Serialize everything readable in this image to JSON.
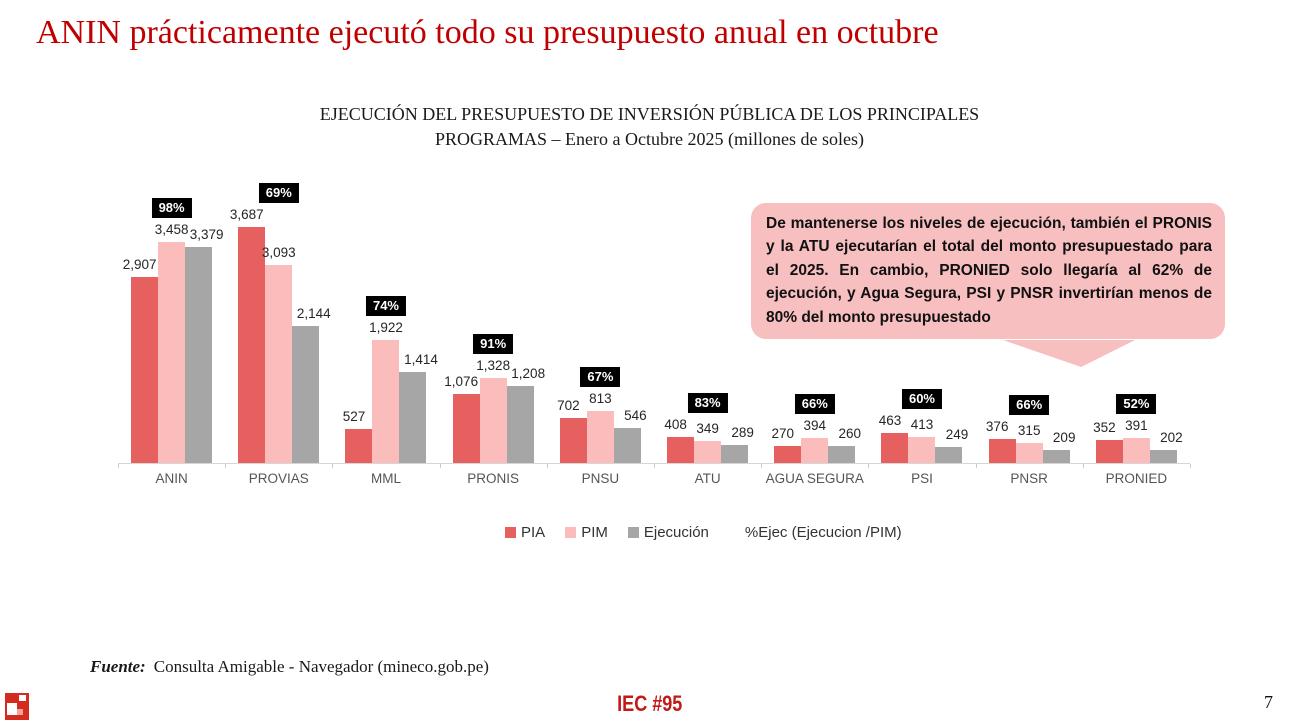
{
  "slide": {
    "title": "ANIN prácticamente ejecutó todo su presupuesto anual en octubre",
    "page_number": "7",
    "footer_brand": "IEC #95",
    "source_label": "Fuente:",
    "source_text": "Consulta Amigable - Navegador (mineco.gob.pe)"
  },
  "callout": {
    "text": "De mantenerse los niveles de ejecución, también el PRONIS y la ATU ejecutarían el total del monto presupuestado para el 2025. En cambio, PRONIED solo llegaría al 62% de ejecución, y Agua Segura, PSI y PNSR invertirían menos de 80% del monto presupuestado",
    "background_color": "#f8bfc0"
  },
  "chart_data": {
    "type": "bar",
    "title_line1": "EJECUCIÓN DEL PRESUPUESTO DE INVERSIÓN PÚBLICA DE LOS PRINCIPALES",
    "title_line2": "PROGRAMAS – Enero a Octubre 2025 (millones de soles)",
    "categories": [
      "ANIN",
      "PROVIAS",
      "MML",
      "PRONIS",
      "PNSU",
      "ATU",
      "AGUA SEGURA",
      "PSI",
      "PNSR",
      "PRONIED"
    ],
    "series": [
      {
        "name": "PIA",
        "color": "#e5605e",
        "values": [
          2907,
          3687,
          527,
          1076,
          702,
          408,
          270,
          463,
          376,
          352
        ]
      },
      {
        "name": "PIM",
        "color": "#fbbcbc",
        "values": [
          3458,
          3093,
          1922,
          1328,
          813,
          349,
          394,
          413,
          315,
          391
        ]
      },
      {
        "name": "Ejecución",
        "color": "#a6a6a6",
        "values": [
          3379,
          2144,
          1414,
          1208,
          546,
          289,
          260,
          249,
          209,
          202
        ]
      }
    ],
    "pct_ejec": [
      "98%",
      "69%",
      "74%",
      "91%",
      "67%",
      "83%",
      "66%",
      "60%",
      "66%",
      "52%"
    ],
    "pct_label_style": {
      "background": "#000000",
      "color": "#ffffff"
    },
    "legend_extra": "%Ejec (Ejecucion /PIM)",
    "ylim": [
      0,
      3700
    ],
    "grid": false,
    "legend_position": "bottom",
    "value_labels": true
  }
}
